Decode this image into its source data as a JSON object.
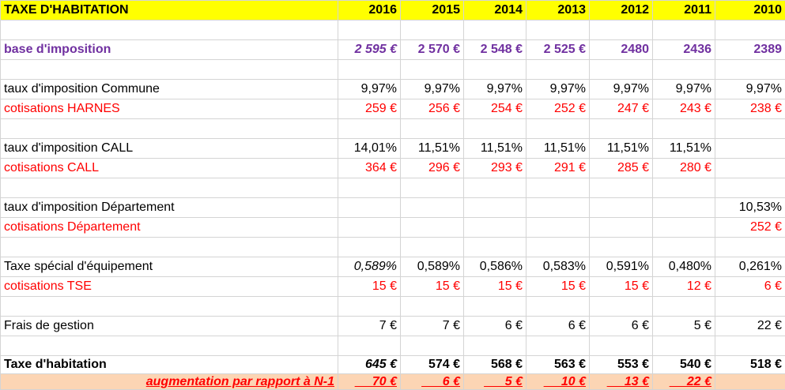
{
  "title": "TAXE D'HABITATION",
  "years": [
    "2016",
    "2015",
    "2014",
    "2013",
    "2012",
    "2011",
    "2010"
  ],
  "rows": [
    {
      "kind": "blank",
      "label": "",
      "values": [
        "",
        "",
        "",
        "",
        "",
        "",
        ""
      ]
    },
    {
      "kind": "purple",
      "label": "base d'imposition",
      "values": [
        "2 595 €",
        "2 570 €",
        "2 548 €",
        "2 525 €",
        "2480",
        "2436",
        "2389"
      ],
      "italic": [
        0
      ]
    },
    {
      "kind": "blank",
      "label": "",
      "values": [
        "",
        "",
        "",
        "",
        "",
        "",
        ""
      ]
    },
    {
      "kind": "normal",
      "label": "taux d'imposition Commune",
      "values": [
        "9,97%",
        "9,97%",
        "9,97%",
        "9,97%",
        "9,97%",
        "9,97%",
        "9,97%"
      ]
    },
    {
      "kind": "red",
      "label": "cotisations HARNES",
      "values": [
        "259 €",
        "256 €",
        "254 €",
        "252 €",
        "247 €",
        "243 €",
        "238 €"
      ]
    },
    {
      "kind": "blank",
      "label": "",
      "values": [
        "",
        "",
        "",
        "",
        "",
        "",
        ""
      ]
    },
    {
      "kind": "normal",
      "label": "taux d'imposition CALL",
      "values": [
        "14,01%",
        "11,51%",
        "11,51%",
        "11,51%",
        "11,51%",
        "11,51%",
        ""
      ]
    },
    {
      "kind": "red",
      "label": "cotisations CALL",
      "values": [
        "364 €",
        "296 €",
        "293 €",
        "291 €",
        "285 €",
        "280 €",
        ""
      ]
    },
    {
      "kind": "blank",
      "label": "",
      "values": [
        "",
        "",
        "",
        "",
        "",
        "",
        ""
      ]
    },
    {
      "kind": "normal",
      "label": "taux d'imposition Département",
      "values": [
        "",
        "",
        "",
        "",
        "",
        "",
        "10,53%"
      ]
    },
    {
      "kind": "red",
      "label": "cotisations Département",
      "values": [
        "",
        "",
        "",
        "",
        "",
        "",
        "252 €"
      ]
    },
    {
      "kind": "blank",
      "label": "",
      "values": [
        "",
        "",
        "",
        "",
        "",
        "",
        ""
      ]
    },
    {
      "kind": "normal",
      "label": "Taxe spécial d'équipement",
      "values": [
        "0,589%",
        "0,589%",
        "0,586%",
        "0,583%",
        "0,591%",
        "0,480%",
        "0,261%"
      ],
      "italic": [
        0
      ]
    },
    {
      "kind": "red",
      "label": "cotisations TSE",
      "values": [
        "15 €",
        "15 €",
        "15 €",
        "15 €",
        "15 €",
        "12 €",
        "6 €"
      ]
    },
    {
      "kind": "blank",
      "label": "",
      "values": [
        "",
        "",
        "",
        "",
        "",
        "",
        ""
      ]
    },
    {
      "kind": "normal",
      "label": "Frais de gestion",
      "values": [
        "7 €",
        "7 €",
        "6 €",
        "6 €",
        "6 €",
        "5 €",
        "22 €"
      ]
    },
    {
      "kind": "blank",
      "label": "",
      "values": [
        "",
        "",
        "",
        "",
        "",
        "",
        ""
      ]
    },
    {
      "kind": "total",
      "label": "Taxe d'habitation",
      "values": [
        "645 €",
        "574 €",
        "568 €",
        "563 €",
        "553 €",
        "540 €",
        "518 €"
      ],
      "italic": [
        0
      ]
    },
    {
      "kind": "increase",
      "label": "augmentation par rapport à N-1",
      "values": [
        "     70 €",
        "      6 €",
        "      5 €",
        "     10 €",
        "     13 €",
        "     22 €",
        ""
      ]
    }
  ]
}
